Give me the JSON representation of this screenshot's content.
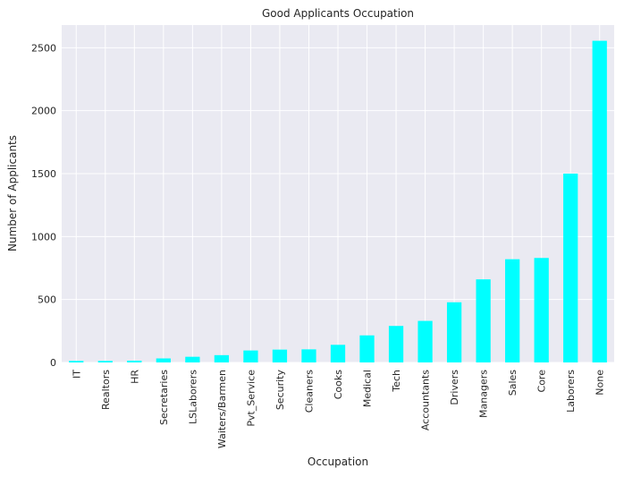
{
  "chart_data": {
    "type": "bar",
    "title": "Good Applicants Occupation",
    "xlabel": "Occupation",
    "ylabel": "Number of Applicants",
    "categories": [
      "IT",
      "Realtors",
      "HR",
      "Secretaries",
      "LSLaborers",
      "Waiters/Barmen",
      "Pvt_Service",
      "Security",
      "Cleaners",
      "Cooks",
      "Medical",
      "Tech",
      "Accountants",
      "Drivers",
      "Managers",
      "Sales",
      "Core",
      "Laborers",
      "None"
    ],
    "values": [
      12,
      12,
      14,
      32,
      45,
      58,
      95,
      102,
      104,
      140,
      215,
      290,
      330,
      478,
      660,
      820,
      830,
      1500,
      2555
    ],
    "ylim": [
      0,
      2680
    ],
    "yticks": [
      0,
      500,
      1000,
      1500,
      2000,
      2500
    ],
    "grid": true,
    "colors": {
      "bar": "#00ffff",
      "plot_bg": "#eaeaf2",
      "grid": "#ffffff"
    }
  }
}
